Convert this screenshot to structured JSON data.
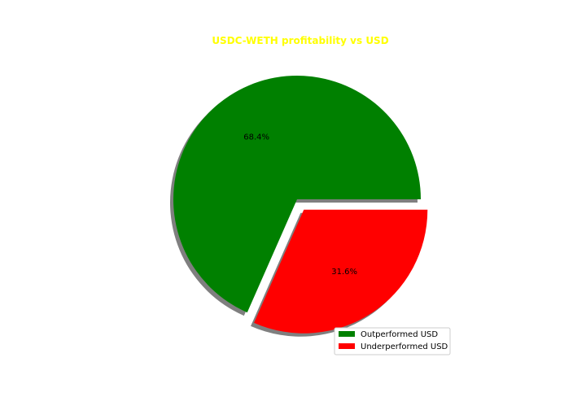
{
  "chart_data": {
    "type": "pie",
    "title": "USDC-WETH profitability vs USD",
    "title_color": "#ffff00",
    "slices": [
      {
        "label": "Outperformed USD",
        "value": 68.4,
        "pct_label": "68.4%",
        "color": "#008000",
        "exploded": false
      },
      {
        "label": "Underperformed USD",
        "value": 31.6,
        "pct_label": "31.6%",
        "color": "#ff0000",
        "exploded": true
      }
    ],
    "start_angle_deg": 0,
    "shadow": true,
    "legend_position": "lower-right"
  }
}
